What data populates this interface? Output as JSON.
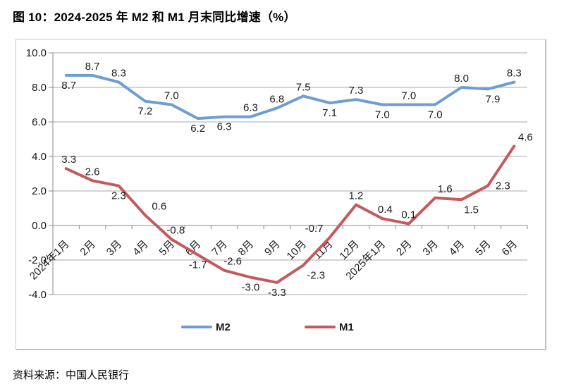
{
  "figure": {
    "title": "图 10：2024-2025 年 M2 和 M1 月末同比增速（%）",
    "source": "资料来源：中国人民银行"
  },
  "chart_data": {
    "type": "line",
    "title": "图 10：2024-2025 年 M2 和 M1 月末同比增速（%）",
    "categories": [
      "2024年1月",
      "2月",
      "3月",
      "4月",
      "5月",
      "6月",
      "7月",
      "8月",
      "9月",
      "10月",
      "11月",
      "12月",
      "2025年1月",
      "2月",
      "3月",
      "4月",
      "5月",
      "6月"
    ],
    "series": [
      {
        "name": "M2",
        "color": "#6D9DD3",
        "values": [
          8.7,
          8.7,
          8.3,
          7.2,
          7.0,
          6.2,
          6.3,
          6.3,
          6.8,
          7.5,
          7.1,
          7.3,
          7.0,
          7.0,
          7.0,
          8.0,
          7.9,
          8.3
        ],
        "label_side": [
          "b",
          "a",
          "a",
          "b",
          "a",
          "b",
          "b",
          "a",
          "a",
          "a",
          "b",
          "a",
          "b",
          "a",
          "b",
          "a",
          "b",
          "a"
        ],
        "label_dx": [
          4,
          0,
          0,
          0,
          0,
          0,
          0,
          0,
          0,
          0,
          0,
          0,
          0,
          0,
          0,
          0,
          7,
          0
        ]
      },
      {
        "name": "M1",
        "color": "#C5595B",
        "values": [
          3.3,
          2.6,
          2.3,
          0.6,
          -0.8,
          -1.7,
          -2.6,
          -3.0,
          -3.3,
          -2.3,
          -0.7,
          1.2,
          0.4,
          0.1,
          1.6,
          1.5,
          2.3,
          4.6
        ],
        "label_side": [
          "a",
          "a",
          "b",
          "a",
          "a",
          "b",
          "a",
          "b",
          "b",
          "b",
          "a",
          "a",
          "a",
          "a",
          "a",
          "b",
          "r",
          "a"
        ],
        "label_dx": [
          4,
          0,
          0,
          20,
          6,
          0,
          12,
          0,
          0,
          18,
          -22,
          0,
          4,
          0,
          14,
          14,
          0,
          16
        ]
      }
    ],
    "y_axis": {
      "min": -4,
      "max": 10,
      "step": 2,
      "tick_labels": [
        "10.0",
        "8.0",
        "6.0",
        "4.0",
        "2.0",
        "0.0",
        "-2.0",
        "-4.0"
      ]
    },
    "grid": true,
    "legend_position": "bottom",
    "value_format": "one-decimal",
    "colors": {
      "gridline": "#a8a8a8",
      "axis": "#8a8a8a",
      "label_text": "#1a1a1a"
    }
  }
}
